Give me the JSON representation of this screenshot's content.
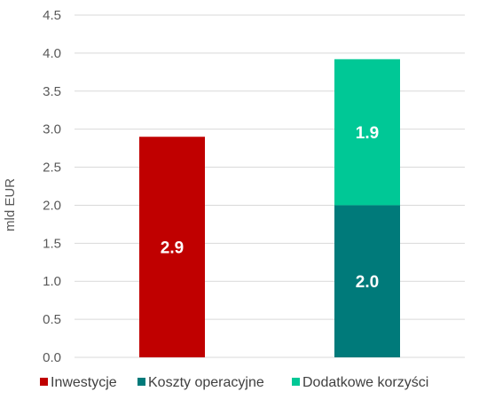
{
  "chart_data": {
    "type": "bar",
    "stacked": true,
    "categories": [
      "",
      ""
    ],
    "ylabel": "mld EUR",
    "ylim": [
      0,
      4.5
    ],
    "yticks": [
      "0.0",
      "0.5",
      "1.0",
      "1.5",
      "2.0",
      "2.5",
      "3.0",
      "3.5",
      "4.0",
      "4.5"
    ],
    "grid": true,
    "legend_position": "bottom",
    "series": [
      {
        "name": "Inwestycje",
        "color": "#c00000",
        "values": [
          2.9,
          0
        ],
        "labels": [
          "2.9",
          ""
        ]
      },
      {
        "name": "Koszty operacyjne",
        "color": "#007a7a",
        "values": [
          0,
          2.0
        ],
        "labels": [
          "",
          "2.0"
        ]
      },
      {
        "name": "Dodatkowe korzyści",
        "color": "#00c896",
        "values": [
          0,
          1.92
        ],
        "labels": [
          "",
          "1.9"
        ]
      }
    ]
  }
}
